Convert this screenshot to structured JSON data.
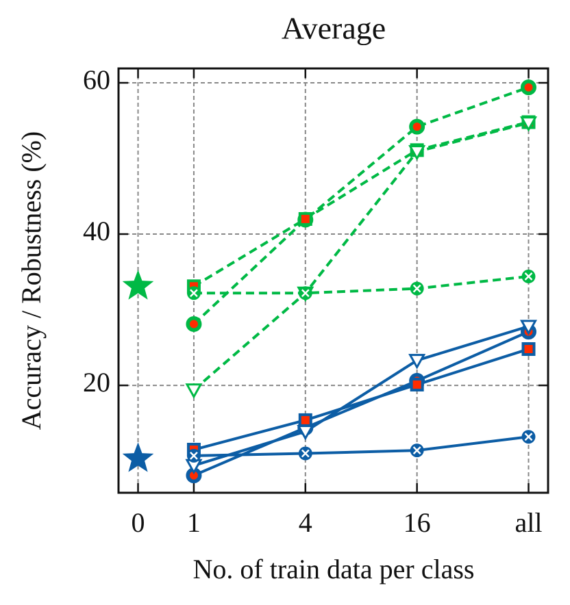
{
  "chart_data": {
    "type": "line",
    "title": "Average",
    "xlabel": "No. of train data per class",
    "ylabel": "Accuracy / Robustness (%)",
    "x": [
      0,
      2,
      4,
      6
    ],
    "xlim": [
      -1.35,
      6.35
    ],
    "xticks": [
      {
        "value": -1,
        "label": "0"
      },
      {
        "value": 0,
        "label": "1"
      },
      {
        "value": 2,
        "label": "4"
      },
      {
        "value": 4,
        "label": "16"
      },
      {
        "value": 6,
        "label": "all"
      }
    ],
    "ylim": [
      5.8,
      61.9
    ],
    "yticks": [
      20,
      40,
      60
    ],
    "grid": true,
    "series": [
      {
        "color": "#00b945",
        "linestyle": "dashed",
        "marker": "circle",
        "values": [
          28.1,
          41.9,
          54.2,
          59.4
        ]
      },
      {
        "color": "#00b945",
        "linestyle": "dashed",
        "marker": "square",
        "values": [
          33.1,
          42.0,
          51.1,
          54.8
        ]
      },
      {
        "color": "#00b945",
        "linestyle": "dashed",
        "marker": "triangle",
        "values": [
          19.4,
          32.2,
          50.9,
          54.7
        ]
      },
      {
        "color": "#00b945",
        "linestyle": "dashed",
        "marker": "x",
        "values": [
          32.2,
          32.2,
          32.8,
          34.4
        ]
      },
      {
        "color": "#0c5da5",
        "linestyle": "solid",
        "marker": "circle",
        "values": [
          8.1,
          14.4,
          20.6,
          27.1
        ]
      },
      {
        "color": "#0c5da5",
        "linestyle": "solid",
        "marker": "square",
        "values": [
          11.5,
          15.4,
          20.1,
          24.8
        ]
      },
      {
        "color": "#0c5da5",
        "linestyle": "solid",
        "marker": "triangle",
        "values": [
          9.4,
          13.9,
          23.3,
          27.8
        ]
      },
      {
        "color": "#0c5da5",
        "linestyle": "solid",
        "marker": "x",
        "values": [
          10.7,
          11.0,
          11.4,
          13.2
        ]
      }
    ],
    "stars": [
      {
        "color": "#00b945",
        "x": -1,
        "value": 33.1
      },
      {
        "color": "#0c5da5",
        "x": -1,
        "value": 10.3
      }
    ],
    "inner_color": "#ff2c00"
  }
}
